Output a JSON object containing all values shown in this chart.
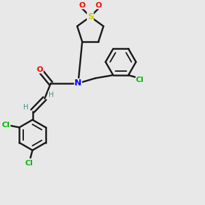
{
  "background_color": "#e8e8e8",
  "bond_color": "#1a1a1a",
  "atom_colors": {
    "O": "#ff0000",
    "N": "#0000ff",
    "S": "#cccc00",
    "Cl": "#00bb00",
    "H": "#4a8a8a",
    "C": "#1a1a1a"
  },
  "figsize": [
    3.0,
    3.0
  ],
  "dpi": 100
}
